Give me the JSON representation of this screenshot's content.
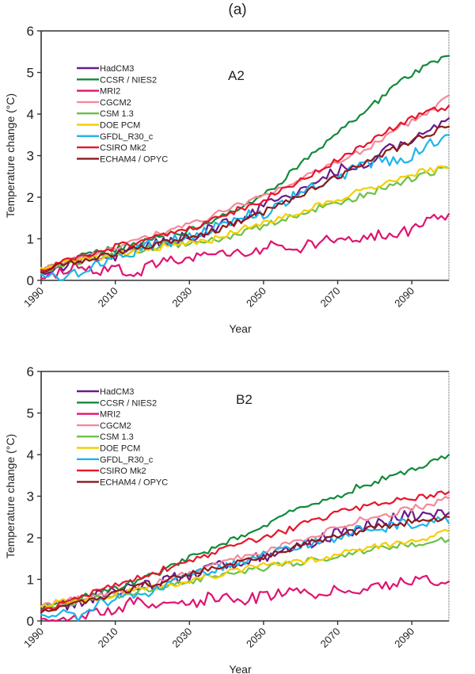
{
  "figure_label": "(a)",
  "chart_data": [
    {
      "type": "line",
      "title": "A2",
      "xlabel": "Year",
      "ylabel": "Temperature change (°C)",
      "xlim": [
        1990,
        2100
      ],
      "ylim": [
        0,
        6
      ],
      "xticks": [
        1990,
        2010,
        2030,
        2050,
        2070,
        2090
      ],
      "yticks": [
        0,
        1,
        2,
        3,
        4,
        5,
        6
      ],
      "grid": false,
      "legend_position": "top-left",
      "x": [
        1990,
        1995,
        2000,
        2005,
        2010,
        2015,
        2020,
        2025,
        2030,
        2035,
        2040,
        2045,
        2050,
        2055,
        2060,
        2065,
        2070,
        2075,
        2080,
        2085,
        2090,
        2095,
        2100
      ],
      "series": [
        {
          "name": "HadCM3",
          "color": "#6a1b8a",
          "values": [
            0.2,
            0.35,
            0.45,
            0.55,
            0.6,
            0.7,
            0.85,
            0.95,
            1.05,
            1.2,
            1.35,
            1.55,
            1.75,
            1.95,
            2.15,
            2.4,
            2.65,
            2.75,
            2.95,
            3.2,
            3.4,
            3.55,
            3.9
          ]
        },
        {
          "name": "CCSR / NIES2",
          "color": "#138a3c",
          "values": [
            0.2,
            0.4,
            0.55,
            0.7,
            0.75,
            0.85,
            1.0,
            1.1,
            1.2,
            1.4,
            1.6,
            1.85,
            2.05,
            2.4,
            2.8,
            3.2,
            3.55,
            3.9,
            4.25,
            4.65,
            4.95,
            5.2,
            5.4
          ]
        },
        {
          "name": "MRI2",
          "color": "#e0136f",
          "values": [
            0.05,
            0.2,
            0.35,
            0.25,
            0.3,
            0.15,
            0.35,
            0.45,
            0.5,
            0.6,
            0.7,
            0.65,
            0.8,
            0.85,
            0.75,
            0.95,
            1.05,
            0.95,
            1.1,
            1.15,
            1.2,
            1.5,
            1.6
          ]
        },
        {
          "name": "CGCM2",
          "color": "#f28a9a",
          "values": [
            0.3,
            0.4,
            0.5,
            0.65,
            0.8,
            0.95,
            1.1,
            1.2,
            1.35,
            1.5,
            1.7,
            1.85,
            2.0,
            2.25,
            2.45,
            2.65,
            2.85,
            3.05,
            3.3,
            3.55,
            3.85,
            4.1,
            4.45
          ]
        },
        {
          "name": "CSM 1.3",
          "color": "#6cc04a",
          "values": [
            0.25,
            0.35,
            0.45,
            0.55,
            0.6,
            0.7,
            0.8,
            0.85,
            0.9,
            0.95,
            1.05,
            1.15,
            1.3,
            1.45,
            1.6,
            1.75,
            1.85,
            2.0,
            2.15,
            2.3,
            2.45,
            2.6,
            2.7
          ]
        },
        {
          "name": "DOE PCM",
          "color": "#f5cf00",
          "values": [
            0.3,
            0.45,
            0.5,
            0.55,
            0.6,
            0.7,
            0.75,
            0.85,
            0.9,
            0.95,
            1.1,
            1.25,
            1.35,
            1.5,
            1.65,
            1.8,
            1.95,
            2.1,
            2.25,
            2.4,
            2.55,
            2.65,
            2.7
          ]
        },
        {
          "name": "GFDL_R30_c",
          "color": "#1eb4ea",
          "values": [
            0.15,
            0.1,
            0.2,
            0.45,
            0.55,
            0.7,
            0.85,
            0.95,
            1.0,
            1.2,
            1.35,
            1.55,
            1.6,
            1.85,
            2.1,
            2.3,
            2.5,
            2.7,
            2.85,
            2.9,
            3.0,
            3.3,
            3.5
          ]
        },
        {
          "name": "CSIRO Mk2",
          "color": "#e8152c",
          "values": [
            0.25,
            0.45,
            0.55,
            0.7,
            0.8,
            0.9,
            1.0,
            1.1,
            1.25,
            1.4,
            1.6,
            1.75,
            1.95,
            2.15,
            2.4,
            2.65,
            2.9,
            3.15,
            3.4,
            3.65,
            3.9,
            4.05,
            4.2
          ]
        },
        {
          "name": "ECHAM4 / OPYC",
          "color": "#8b1a1a",
          "values": [
            0.2,
            0.35,
            0.45,
            0.55,
            0.65,
            0.75,
            0.85,
            0.95,
            1.05,
            1.15,
            1.3,
            1.45,
            1.65,
            1.85,
            2.05,
            2.3,
            2.5,
            2.75,
            2.95,
            3.15,
            3.35,
            3.55,
            3.7
          ]
        }
      ]
    },
    {
      "type": "line",
      "title": "B2",
      "xlabel": "Year",
      "ylabel": "Temperature change (°C)",
      "xlim": [
        1990,
        2100
      ],
      "ylim": [
        0,
        6
      ],
      "xticks": [
        1990,
        2010,
        2030,
        2050,
        2070,
        2090
      ],
      "yticks": [
        0,
        1,
        2,
        3,
        4,
        5,
        6
      ],
      "grid": false,
      "legend_position": "top-left",
      "x": [
        1990,
        1995,
        2000,
        2005,
        2010,
        2015,
        2020,
        2025,
        2030,
        2035,
        2040,
        2045,
        2050,
        2055,
        2060,
        2065,
        2070,
        2075,
        2080,
        2085,
        2090,
        2095,
        2100
      ],
      "series": [
        {
          "name": "HadCM3",
          "color": "#6a1b8a",
          "values": [
            0.25,
            0.35,
            0.45,
            0.6,
            0.7,
            0.8,
            0.85,
            1.0,
            1.1,
            1.25,
            1.35,
            1.45,
            1.55,
            1.65,
            1.8,
            1.95,
            2.1,
            2.2,
            2.35,
            2.45,
            2.55,
            2.55,
            2.6
          ]
        },
        {
          "name": "CCSR / NIES2",
          "color": "#138a3c",
          "values": [
            0.25,
            0.4,
            0.55,
            0.65,
            0.8,
            0.95,
            1.1,
            1.3,
            1.5,
            1.7,
            1.9,
            2.1,
            2.3,
            2.5,
            2.7,
            2.85,
            3.0,
            3.2,
            3.35,
            3.5,
            3.65,
            3.8,
            4.0
          ]
        },
        {
          "name": "MRI2",
          "color": "#e0136f",
          "values": [
            0.05,
            0.1,
            0.05,
            0.2,
            0.3,
            0.45,
            0.35,
            0.5,
            0.4,
            0.55,
            0.65,
            0.5,
            0.6,
            0.7,
            0.75,
            0.65,
            0.8,
            0.75,
            0.85,
            0.9,
            0.95,
            1.0,
            0.95
          ]
        },
        {
          "name": "CGCM2",
          "color": "#f28a9a",
          "values": [
            0.35,
            0.45,
            0.55,
            0.6,
            0.7,
            0.8,
            0.9,
            1.0,
            1.15,
            1.3,
            1.45,
            1.55,
            1.65,
            1.8,
            1.95,
            2.1,
            2.25,
            2.4,
            2.5,
            2.6,
            2.7,
            2.8,
            2.95
          ]
        },
        {
          "name": "CSM 1.3",
          "color": "#6cc04a",
          "values": [
            0.25,
            0.4,
            0.45,
            0.55,
            0.6,
            0.7,
            0.8,
            0.85,
            0.95,
            1.05,
            1.1,
            1.2,
            1.25,
            1.35,
            1.4,
            1.5,
            1.55,
            1.65,
            1.75,
            1.8,
            1.85,
            1.9,
            1.95
          ]
        },
        {
          "name": "DOE PCM",
          "color": "#f5cf00",
          "values": [
            0.35,
            0.45,
            0.5,
            0.55,
            0.65,
            0.75,
            0.8,
            0.9,
            0.95,
            1.05,
            1.15,
            1.25,
            1.35,
            1.35,
            1.45,
            1.5,
            1.6,
            1.7,
            1.8,
            1.85,
            1.95,
            2.0,
            2.15
          ]
        },
        {
          "name": "GFDL_R30_c",
          "color": "#1eb4ea",
          "values": [
            0.15,
            0.2,
            0.1,
            0.4,
            0.55,
            0.6,
            0.75,
            0.9,
            1.05,
            1.2,
            1.3,
            1.45,
            1.6,
            1.75,
            1.8,
            1.9,
            2.05,
            2.15,
            2.25,
            2.3,
            2.35,
            2.4,
            2.35
          ]
        },
        {
          "name": "CSIRO Mk2",
          "color": "#e8152c",
          "values": [
            0.25,
            0.4,
            0.55,
            0.7,
            0.85,
            1.0,
            1.15,
            1.3,
            1.45,
            1.6,
            1.75,
            1.9,
            2.0,
            2.15,
            2.3,
            2.45,
            2.6,
            2.7,
            2.8,
            2.9,
            2.95,
            3.0,
            3.1
          ]
        },
        {
          "name": "ECHAM4 / OPYC",
          "color": "#8b1a1a",
          "values": [
            0.2,
            0.35,
            0.45,
            0.55,
            0.65,
            0.8,
            0.9,
            1.0,
            1.1,
            1.25,
            1.35,
            1.45,
            1.55,
            1.7,
            1.8,
            1.95,
            2.05,
            2.15,
            2.25,
            2.3,
            2.4,
            2.45,
            2.5
          ]
        }
      ]
    }
  ]
}
